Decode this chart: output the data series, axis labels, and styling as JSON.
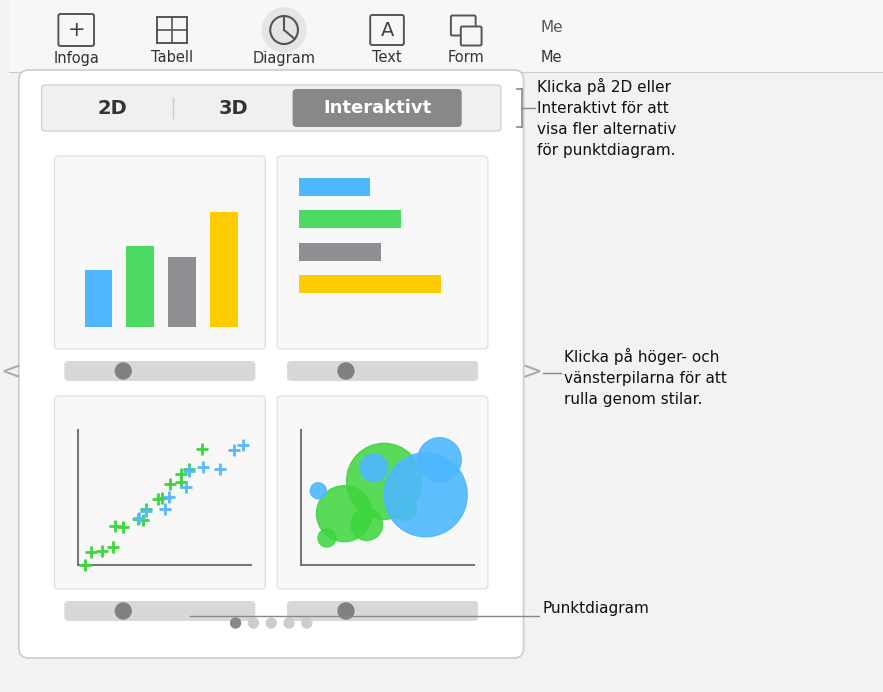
{
  "bg_color": "#f2f2f2",
  "toolbar_bg": "#f7f7f7",
  "toolbar_items": [
    "Infoga",
    "Tabell",
    "Diagram",
    "Text",
    "Form",
    "Me"
  ],
  "dialog_bg": "#ffffff",
  "dialog_border": "#cccccc",
  "tab_2d": "2D",
  "tab_3d": "3D",
  "tab_interactive": "Interaktivt",
  "tab_active_bg": "#888888",
  "tab_active_fg": "#ffffff",
  "tab_inactive_fg": "#333333",
  "tab_bar_bg": "#f0f0f0",
  "tab_bar_border": "#cccccc",
  "annotation1": "Klicka på 2D eller\nInteraktivt för att\nvisa fler alternativ\nför punktdiagram.",
  "annotation2": "Klicka på höger- och\nvänsterpilarna för att\nrulla genom stilar.",
  "annotation3": "Punktdiagram",
  "bar_colors": [
    "#4db8ff",
    "#4cd964",
    "#8e8e93",
    "#ffcc00"
  ],
  "hbar_colors": [
    "#4db8ff",
    "#4cd964",
    "#8e8e93",
    "#ffcc00"
  ],
  "slider_bg": "#d8d8d8",
  "slider_knob": "#808080",
  "nav_arrow_color": "#aaaaaa",
  "dot_active": "#888888",
  "dot_inactive": "#cccccc",
  "num_dots": 5,
  "active_dot": 0,
  "thumb_bg": "#f8f8f8",
  "thumb_border": "#dddddd"
}
